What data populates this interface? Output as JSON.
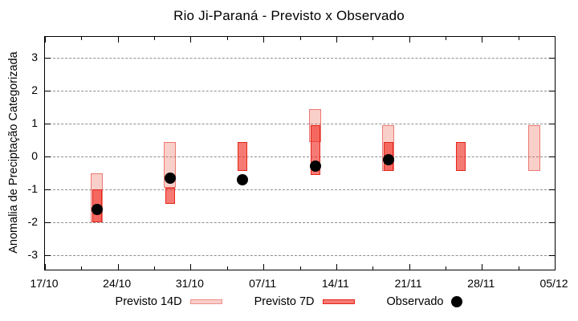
{
  "chart_data": {
    "type": "bar",
    "title": "Rio Ji-Paraná - Previsto x Observado",
    "ylabel": "Anomalia de Preciptação Categorizada",
    "xlabel": "",
    "x_tick_labels": [
      "17/10",
      "24/10",
      "31/10",
      "07/11",
      "14/11",
      "21/11",
      "28/11",
      "05/12"
    ],
    "x_tick_interval_days": 7,
    "x_minor_tick_interval_days": 3.5,
    "x_total_days": 49,
    "y_ticks": [
      3,
      2,
      1,
      0,
      -1,
      -2,
      -3
    ],
    "ylim": [
      -3.5,
      3.6
    ],
    "grid": "horizontal-dashed",
    "legend_position": "bottom",
    "points": [
      {
        "date": "22/10",
        "day": 5,
        "previsto_14d": [
          -2.0,
          -0.5
        ],
        "previsto_7d": [
          -2.0,
          -1.0
        ],
        "observado": -1.6
      },
      {
        "date": "29/10",
        "day": 12,
        "previsto_14d": [
          -0.95,
          0.45
        ],
        "previsto_7d": [
          -1.45,
          -0.95
        ],
        "observado": -0.65
      },
      {
        "date": "05/11",
        "day": 19,
        "previsto_14d": null,
        "previsto_7d": [
          -0.45,
          0.45
        ],
        "observado": -0.7
      },
      {
        "date": "12/11",
        "day": 26,
        "previsto_14d": [
          0.45,
          1.45
        ],
        "previsto_7d": [
          -0.55,
          0.95
        ],
        "observado": -0.3
      },
      {
        "date": "19/11",
        "day": 33,
        "previsto_14d": [
          -0.45,
          0.95
        ],
        "previsto_7d": [
          -0.45,
          0.45
        ],
        "observado": -0.1
      },
      {
        "date": "26/11",
        "day": 40,
        "previsto_14d": null,
        "previsto_7d": [
          -0.45,
          0.45
        ],
        "observado": null
      },
      {
        "date": "03/12",
        "day": 47,
        "previsto_14d": [
          -0.45,
          0.95
        ],
        "previsto_7d": null,
        "observado": null
      }
    ],
    "legend": [
      {
        "label": "Previsto 14D",
        "type": "box",
        "fill": "#f9cfca",
        "border": "#f18e88"
      },
      {
        "label": "Previsto 7D",
        "type": "box",
        "fill": "#f67a73",
        "border": "#e5251b"
      },
      {
        "label": "Observado",
        "type": "dot",
        "fill": "#000000"
      }
    ],
    "colors": {
      "p14_fill": "rgba(236,96,80,0.30)",
      "p14_border": "rgba(230,50,40,0.55)",
      "p7_fill": "rgba(240,40,30,0.62)",
      "p7_border": "#e5251b",
      "observed": "#000000",
      "grid": "#8f8f8f",
      "frame": "#000000"
    }
  }
}
